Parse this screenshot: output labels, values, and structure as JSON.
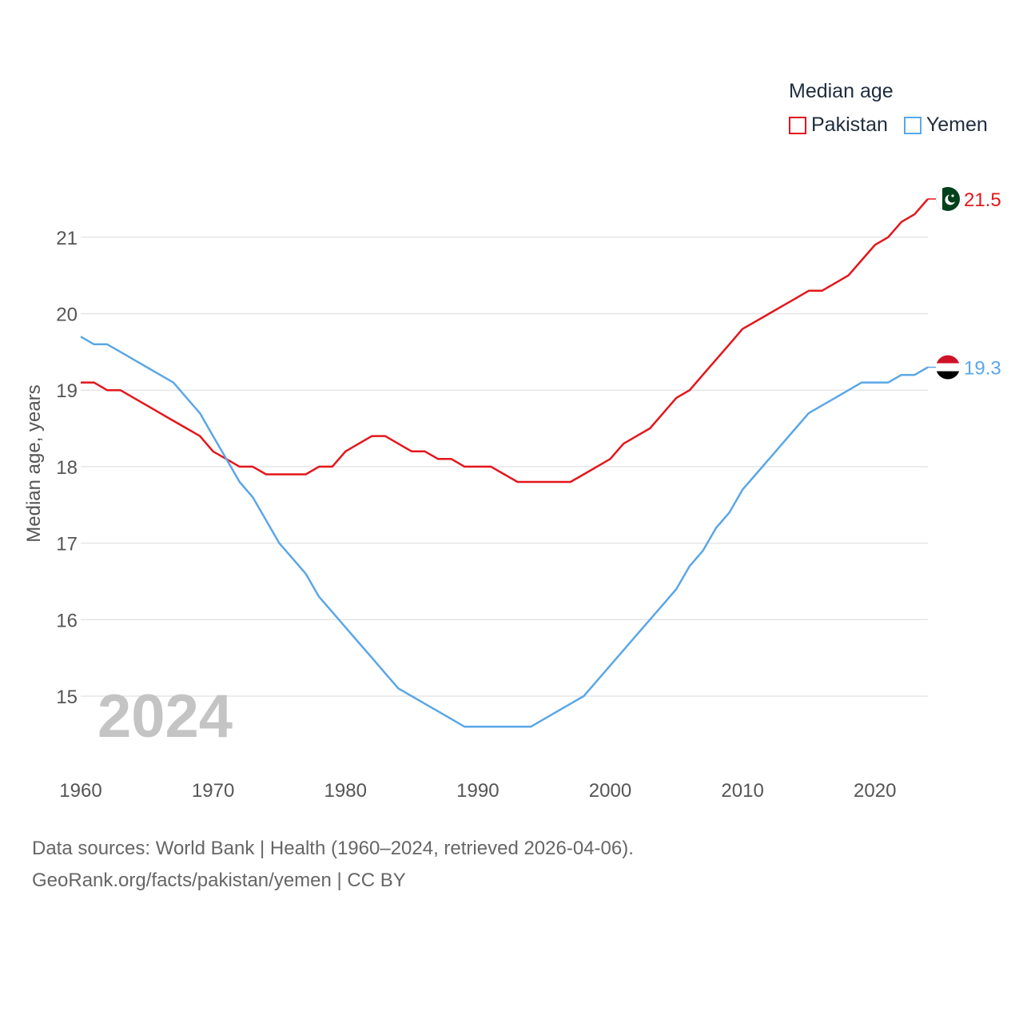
{
  "legend": {
    "title": "Median age",
    "items": [
      {
        "label": "Pakistan",
        "color": "#e3161b"
      },
      {
        "label": "Yemen",
        "color": "#5ba7e6"
      }
    ]
  },
  "footer": {
    "line1": "Data sources: World Bank | Health (1960–2024, retrieved 2026-04-06).",
    "line2": "GeoRank.org/facts/pakistan/yemen | CC BY"
  },
  "chart_data": {
    "type": "line",
    "title": "Median age",
    "ylabel": "Median age, years",
    "xlabel": "",
    "year_label": "2024",
    "xlim": [
      1960,
      2024
    ],
    "ylim": [
      14.1,
      21.7
    ],
    "x_ticks": [
      1960,
      1970,
      1980,
      1990,
      2000,
      2010,
      2020
    ],
    "y_ticks": [
      15,
      16,
      17,
      18,
      19,
      20,
      21
    ],
    "grid": true,
    "x": [
      1960,
      1961,
      1962,
      1963,
      1964,
      1965,
      1966,
      1967,
      1968,
      1969,
      1970,
      1971,
      1972,
      1973,
      1974,
      1975,
      1976,
      1977,
      1978,
      1979,
      1980,
      1981,
      1982,
      1983,
      1984,
      1985,
      1986,
      1987,
      1988,
      1989,
      1990,
      1991,
      1992,
      1993,
      1994,
      1995,
      1996,
      1997,
      1998,
      1999,
      2000,
      2001,
      2002,
      2003,
      2004,
      2005,
      2006,
      2007,
      2008,
      2009,
      2010,
      2011,
      2012,
      2013,
      2014,
      2015,
      2016,
      2017,
      2018,
      2019,
      2020,
      2021,
      2022,
      2023,
      2024
    ],
    "series": [
      {
        "name": "Pakistan",
        "color": "#e3161b",
        "end_label": "21.5",
        "flag": "pakistan-flag",
        "values": [
          19.1,
          19.1,
          19.0,
          19.0,
          18.9,
          18.8,
          18.7,
          18.6,
          18.5,
          18.4,
          18.2,
          18.1,
          18.0,
          18.0,
          17.9,
          17.9,
          17.9,
          17.9,
          18.0,
          18.0,
          18.2,
          18.3,
          18.4,
          18.4,
          18.3,
          18.2,
          18.2,
          18.1,
          18.1,
          18.0,
          18.0,
          18.0,
          17.9,
          17.8,
          17.8,
          17.8,
          17.8,
          17.8,
          17.9,
          18.0,
          18.1,
          18.3,
          18.4,
          18.5,
          18.7,
          18.9,
          19.0,
          19.2,
          19.4,
          19.6,
          19.8,
          19.9,
          20.0,
          20.1,
          20.2,
          20.3,
          20.3,
          20.4,
          20.5,
          20.7,
          20.9,
          21.0,
          21.2,
          21.3,
          21.5
        ]
      },
      {
        "name": "Yemen",
        "color": "#5ba7e6",
        "end_label": "19.3",
        "flag": "yemen-flag",
        "values": [
          19.7,
          19.6,
          19.6,
          19.5,
          19.4,
          19.3,
          19.2,
          19.1,
          18.9,
          18.7,
          18.4,
          18.1,
          17.8,
          17.6,
          17.3,
          17.0,
          16.8,
          16.6,
          16.3,
          16.1,
          15.9,
          15.7,
          15.5,
          15.3,
          15.1,
          15.0,
          14.9,
          14.8,
          14.7,
          14.6,
          14.6,
          14.6,
          14.6,
          14.6,
          14.6,
          14.7,
          14.8,
          14.9,
          15.0,
          15.2,
          15.4,
          15.6,
          15.8,
          16.0,
          16.2,
          16.4,
          16.7,
          16.9,
          17.2,
          17.4,
          17.7,
          17.9,
          18.1,
          18.3,
          18.5,
          18.7,
          18.8,
          18.9,
          19.0,
          19.1,
          19.1,
          19.1,
          19.2,
          19.2,
          19.3
        ]
      }
    ]
  }
}
